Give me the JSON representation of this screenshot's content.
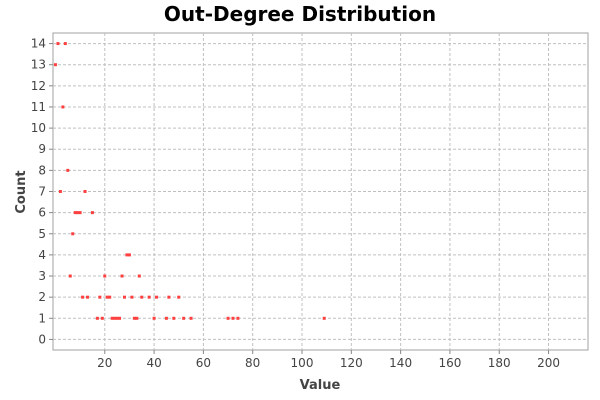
{
  "chart_data": {
    "type": "scatter",
    "title": "Out-Degree Distribution",
    "xlabel": "Value",
    "ylabel": "Count",
    "xlim": [
      -1,
      216
    ],
    "ylim": [
      -0.5,
      14.5
    ],
    "xticks": [
      20,
      40,
      60,
      80,
      100,
      120,
      140,
      160,
      180,
      200
    ],
    "yticks": [
      0,
      1,
      2,
      3,
      4,
      5,
      6,
      7,
      8,
      9,
      10,
      11,
      12,
      13,
      14
    ],
    "grid": true,
    "series": [
      {
        "name": "Out-Degree",
        "color": "#ff4040",
        "points": [
          [
            0,
            13
          ],
          [
            1,
            14
          ],
          [
            2,
            7
          ],
          [
            3,
            11
          ],
          [
            4,
            14
          ],
          [
            5,
            8
          ],
          [
            6,
            3
          ],
          [
            7,
            5
          ],
          [
            8,
            6
          ],
          [
            9,
            6
          ],
          [
            10,
            6
          ],
          [
            11,
            2
          ],
          [
            12,
            7
          ],
          [
            13,
            2
          ],
          [
            15,
            6
          ],
          [
            17,
            1
          ],
          [
            18,
            2
          ],
          [
            19,
            1
          ],
          [
            20,
            3
          ],
          [
            21,
            2
          ],
          [
            22,
            2
          ],
          [
            23,
            1
          ],
          [
            24,
            1
          ],
          [
            25,
            1
          ],
          [
            26,
            1
          ],
          [
            27,
            3
          ],
          [
            28,
            2
          ],
          [
            29,
            4
          ],
          [
            30,
            4
          ],
          [
            31,
            2
          ],
          [
            32,
            1
          ],
          [
            33,
            1
          ],
          [
            34,
            3
          ],
          [
            35,
            2
          ],
          [
            38,
            2
          ],
          [
            40,
            1
          ],
          [
            41,
            2
          ],
          [
            45,
            1
          ],
          [
            46,
            2
          ],
          [
            48,
            1
          ],
          [
            50,
            2
          ],
          [
            52,
            1
          ],
          [
            55,
            1
          ],
          [
            70,
            1
          ],
          [
            72,
            1
          ],
          [
            74,
            1
          ],
          [
            109,
            1
          ]
        ]
      }
    ]
  }
}
